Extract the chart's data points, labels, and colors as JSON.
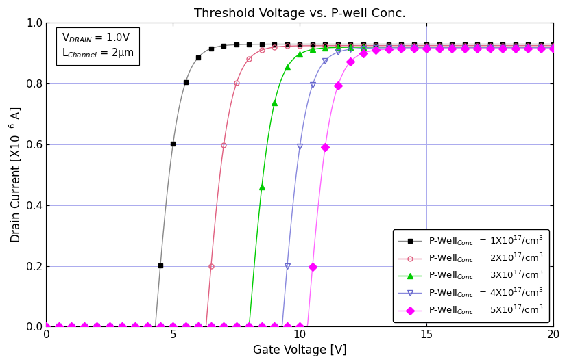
{
  "title": "Threshold Voltage vs. P-well Conc.",
  "xlabel": "Gate Voltage [V]",
  "ylabel": "Drain Current [X10$^{-6}$ A]",
  "xlim": [
    0,
    20
  ],
  "ylim": [
    0,
    1.0
  ],
  "series": [
    {
      "label": "1X10$^{17}$/cm$^3$",
      "color": "#555555",
      "line_color": "#888888",
      "marker": "s",
      "marker_fill": "black",
      "marker_edge": "black",
      "vth": 4.3,
      "k": 1.1,
      "sat": 0.93
    },
    {
      "label": "2X10$^{17}$/cm$^3$",
      "color": "#e06080",
      "line_color": "#e06080",
      "marker": "o",
      "marker_fill": "none",
      "marker_edge": "#e06080",
      "vth": 6.3,
      "k": 1.1,
      "sat": 0.925
    },
    {
      "label": "3X10$^{17}$/cm$^3$",
      "color": "#00cc00",
      "line_color": "#00cc00",
      "marker": "^",
      "marker_fill": "#00cc00",
      "marker_edge": "#00cc00",
      "vth": 8.0,
      "k": 1.1,
      "sat": 0.92
    },
    {
      "label": "4X10$^{17}$/cm$^3$",
      "color": "#6666cc",
      "line_color": "#8888dd",
      "marker": "v",
      "marker_fill": "none",
      "marker_edge": "#6666cc",
      "vth": 9.3,
      "k": 1.1,
      "sat": 0.918
    },
    {
      "label": "5X10$^{17}$/cm$^3$",
      "color": "#ff00ff",
      "line_color": "#ff66ff",
      "marker": "D",
      "marker_fill": "#ff00ff",
      "marker_edge": "#ff00ff",
      "vth": 10.3,
      "k": 1.1,
      "sat": 0.915
    }
  ],
  "background_color": "white",
  "grid_color": "#aaaaee",
  "title_fontsize": 13,
  "label_fontsize": 12,
  "tick_fontsize": 11,
  "legend_fontsize": 9.5
}
